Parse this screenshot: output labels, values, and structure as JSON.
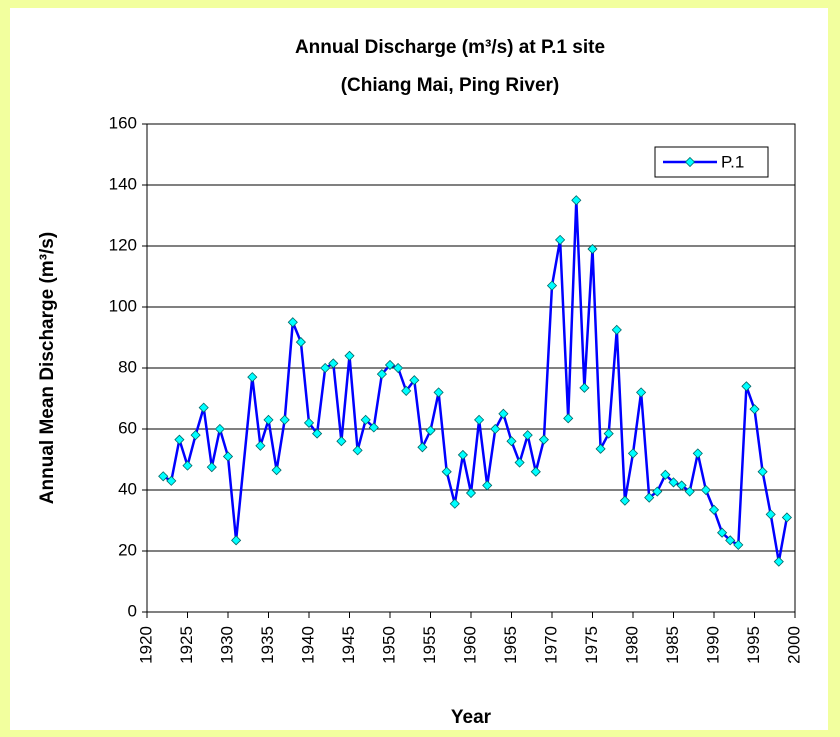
{
  "chart_data": {
    "type": "line",
    "title": [
      "Annual Discharge (m³/s) at P.1 site",
      "(Chiang Mai, Ping River)"
    ],
    "x_label": "Year",
    "y_label": "Annual Mean Discharge (m³/s)",
    "x": [
      1922,
      1923,
      1924,
      1925,
      1926,
      1927,
      1928,
      1929,
      1930,
      1931,
      1933,
      1934,
      1935,
      1936,
      1937,
      1938,
      1939,
      1940,
      1941,
      1942,
      1943,
      1944,
      1945,
      1946,
      1947,
      1948,
      1949,
      1950,
      1951,
      1952,
      1953,
      1954,
      1955,
      1956,
      1957,
      1958,
      1959,
      1960,
      1961,
      1962,
      1963,
      1964,
      1965,
      1966,
      1967,
      1968,
      1969,
      1970,
      1971,
      1972,
      1973,
      1974,
      1975,
      1976,
      1977,
      1978,
      1979,
      1980,
      1981,
      1982,
      1983,
      1984,
      1985,
      1986,
      1987,
      1988,
      1989,
      1990,
      1991,
      1992,
      1993,
      1994,
      1995,
      1996,
      1997,
      1998,
      1999
    ],
    "series": [
      {
        "name": "P.1",
        "color": "#0000ff",
        "marker_color": "#00ffff",
        "values": [
          44.5,
          43,
          56.5,
          48,
          58,
          67,
          47.5,
          60,
          51,
          23.5,
          77,
          54.5,
          63,
          46.5,
          63,
          95,
          88.5,
          62,
          58.5,
          80,
          81.5,
          56,
          84,
          53,
          63,
          60.5,
          78,
          81,
          80,
          72.5,
          76,
          54,
          59.5,
          72,
          46,
          35.5,
          51.5,
          39,
          63,
          41.5,
          60,
          65,
          56,
          49,
          58,
          46,
          56.5,
          107,
          122,
          63.5,
          135,
          73.5,
          119,
          53.5,
          58.5,
          92.5,
          36.5,
          52,
          72,
          37.5,
          39.5,
          45,
          42.5,
          41.5,
          39.5,
          52,
          40,
          33.5,
          26,
          23.5,
          22,
          74,
          66.5,
          46,
          32,
          16.5,
          31
        ]
      }
    ],
    "xlim": [
      1920,
      2000
    ],
    "xticks": [
      1920,
      1925,
      1930,
      1935,
      1940,
      1945,
      1950,
      1955,
      1960,
      1965,
      1970,
      1975,
      1980,
      1985,
      1990,
      1995,
      2000
    ],
    "ylim": [
      0,
      160
    ],
    "yticks": [
      0,
      20,
      40,
      60,
      80,
      100,
      120,
      140,
      160
    ],
    "grid": true,
    "legend": "top-right"
  }
}
